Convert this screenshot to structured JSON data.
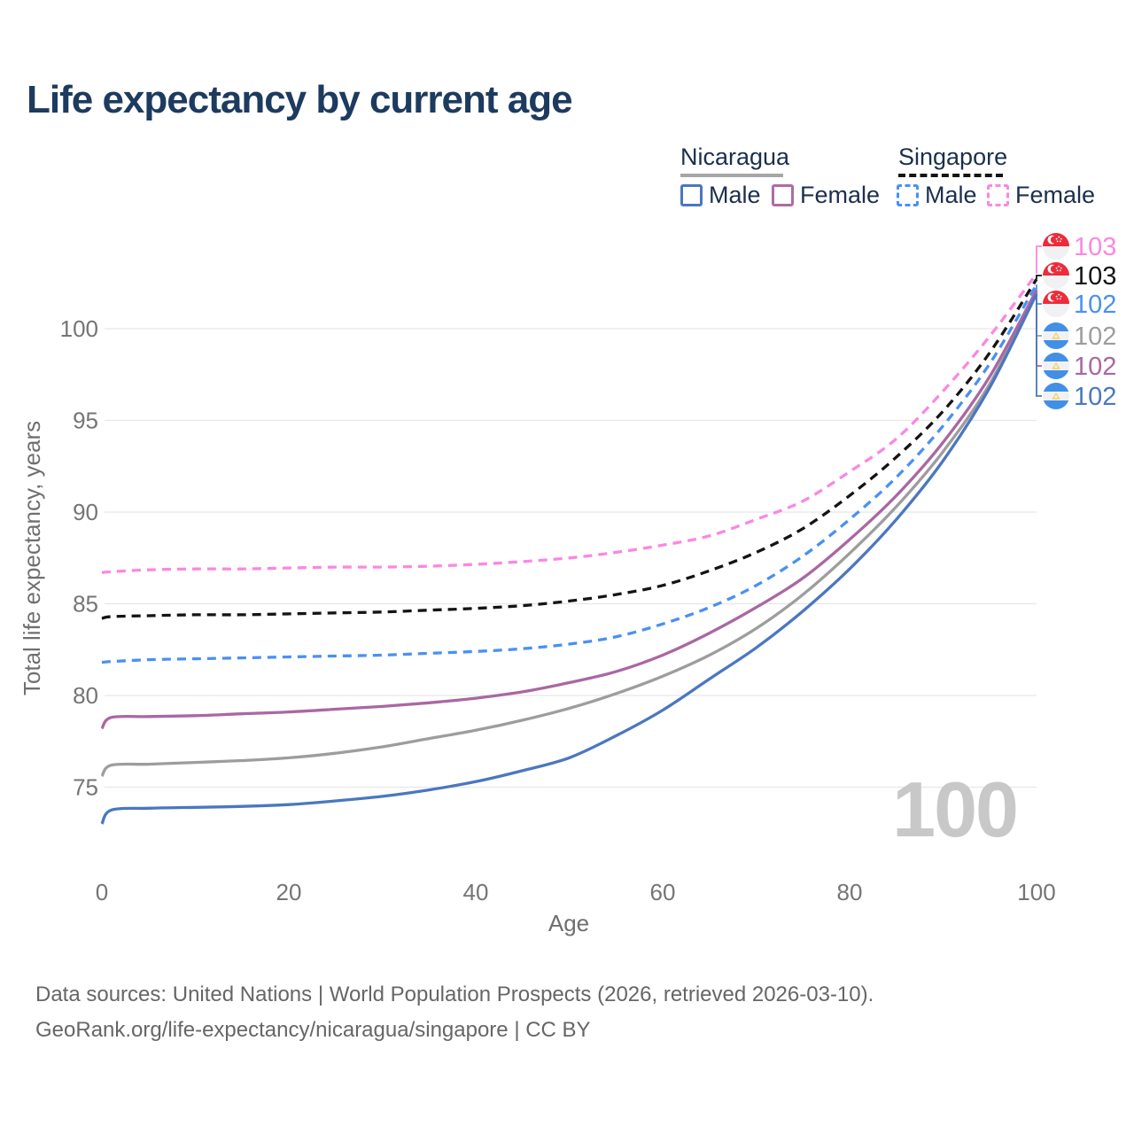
{
  "header": {
    "title": "Life expectancy by current age"
  },
  "legend": {
    "groups": [
      {
        "country": "Nicaragua",
        "line_style": "solid",
        "line_color": "#a6a6a6",
        "items": [
          {
            "label": "Male",
            "color": "#4a77c0",
            "dashed": false
          },
          {
            "label": "Female",
            "color": "#b06aa5",
            "dashed": false
          }
        ]
      },
      {
        "country": "Singapore",
        "line_style": "dashed",
        "line_color": "#141414",
        "items": [
          {
            "label": "Male",
            "color": "#4a90f2",
            "dashed": true
          },
          {
            "label": "Female",
            "color": "#fb87e2",
            "dashed": true
          }
        ]
      }
    ]
  },
  "watermark": "100",
  "footer": {
    "line1": "Data sources: United Nations | World Population Prospects (2026, retrieved 2026-03-10).",
    "line2": "GeoRank.org/life-expectancy/nicaragua/singapore | CC BY"
  },
  "chart_data": {
    "type": "line",
    "title": "Life expectancy by current age",
    "xlabel": "Age",
    "ylabel": "Total life expectancy, years",
    "x_ticks": [
      0,
      20,
      40,
      60,
      80,
      100
    ],
    "y_ticks": [
      75,
      80,
      85,
      90,
      95,
      100
    ],
    "xlim": [
      0,
      100
    ],
    "ylim": [
      71.5,
      104.5
    ],
    "grid": "horizontal",
    "legend_position": "top-right",
    "ages": [
      0,
      1,
      5,
      10,
      15,
      20,
      25,
      30,
      35,
      40,
      45,
      50,
      55,
      60,
      65,
      70,
      75,
      80,
      85,
      90,
      95,
      100
    ],
    "series": [
      {
        "id": "sg-female",
        "name": "Singapore Female",
        "country": "Singapore",
        "sex": "Female",
        "color": "#fb87e2",
        "dashed": true,
        "flag": "sg",
        "end_label": "103",
        "values": [
          86.7,
          86.75,
          86.85,
          86.9,
          86.9,
          86.95,
          87.0,
          87.0,
          87.05,
          87.15,
          87.3,
          87.5,
          87.8,
          88.2,
          88.7,
          89.6,
          90.6,
          92.2,
          94.0,
          96.6,
          99.6,
          103.0
        ]
      },
      {
        "id": "sg-all",
        "name": "Singapore (both sexes)",
        "country": "Singapore",
        "sex": "All",
        "color": "#141414",
        "dashed": true,
        "flag": "sg",
        "end_label": "103",
        "values": [
          84.2,
          84.3,
          84.35,
          84.4,
          84.4,
          84.45,
          84.5,
          84.55,
          84.65,
          84.75,
          84.9,
          85.15,
          85.5,
          86.0,
          86.8,
          87.8,
          89.1,
          90.9,
          93.0,
          95.5,
          98.7,
          102.7
        ]
      },
      {
        "id": "sg-male",
        "name": "Singapore Male",
        "country": "Singapore",
        "sex": "Male",
        "color": "#4a90f2",
        "dashed": true,
        "flag": "sg",
        "end_label": "102",
        "values": [
          81.8,
          81.85,
          81.95,
          82.0,
          82.05,
          82.1,
          82.15,
          82.2,
          82.3,
          82.4,
          82.55,
          82.8,
          83.2,
          83.9,
          84.8,
          86.0,
          87.6,
          89.6,
          91.9,
          94.7,
          98.1,
          102.4
        ]
      },
      {
        "id": "ni-all",
        "name": "Nicaragua (both sexes)",
        "country": "Nicaragua",
        "sex": "All",
        "color": "#9d9d9d",
        "dashed": false,
        "flag": "ni",
        "end_label": "102",
        "values": [
          75.6,
          76.2,
          76.25,
          76.35,
          76.45,
          76.6,
          76.85,
          77.2,
          77.65,
          78.1,
          78.65,
          79.3,
          80.1,
          81.05,
          82.2,
          83.65,
          85.5,
          87.75,
          90.3,
          93.3,
          97.0,
          102.0
        ]
      },
      {
        "id": "ni-female",
        "name": "Nicaragua Female",
        "country": "Nicaragua",
        "sex": "Female",
        "color": "#aa67a3",
        "dashed": false,
        "flag": "ni",
        "end_label": "102",
        "values": [
          78.2,
          78.8,
          78.85,
          78.9,
          79.0,
          79.1,
          79.25,
          79.4,
          79.6,
          79.85,
          80.2,
          80.7,
          81.3,
          82.2,
          83.4,
          84.8,
          86.4,
          88.5,
          90.9,
          93.8,
          97.4,
          102.1
        ]
      },
      {
        "id": "ni-male",
        "name": "Nicaragua Male",
        "country": "Nicaragua",
        "sex": "Male",
        "color": "#4a77c0",
        "dashed": false,
        "flag": "ni",
        "end_label": "102",
        "values": [
          73.0,
          73.75,
          73.85,
          73.9,
          73.95,
          74.05,
          74.25,
          74.5,
          74.85,
          75.3,
          75.9,
          76.6,
          77.8,
          79.2,
          80.9,
          82.6,
          84.6,
          86.9,
          89.6,
          92.8,
          96.8,
          101.9
        ]
      }
    ]
  }
}
